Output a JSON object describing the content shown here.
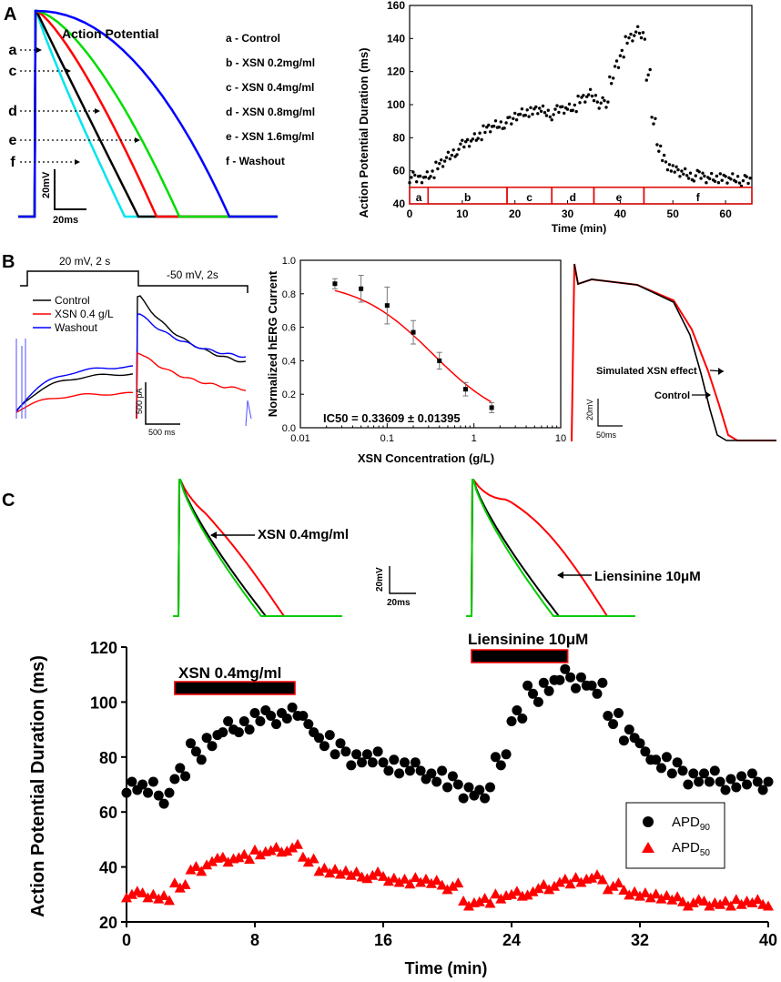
{
  "panel_labels": {
    "a": "A",
    "b": "B",
    "c": "C"
  },
  "panelA": {
    "traces": {
      "title": "Action Potential",
      "letters": [
        "a",
        "c",
        "d",
        "e",
        "f"
      ],
      "legend": [
        "a - Control",
        "b - XSN 0.2mg/ml",
        "c - XSN 0.4mg/ml",
        "d - XSN 0.8mg/ml",
        "e - XSN 1.6mg/ml",
        "f - Washout"
      ],
      "scale_v": "20mV",
      "scale_t": "20ms",
      "colors": [
        "#000000",
        "#ff0000",
        "#00dd00",
        "#0000ff",
        "#00e5ee"
      ]
    },
    "timecourse": {
      "ylabel": "Action Potential Duration (ms)",
      "xlabel": "Time (min)",
      "segments": [
        {
          "label": "a",
          "from": 0,
          "to": 3.5
        },
        {
          "label": "b",
          "from": 3.5,
          "to": 18.5
        },
        {
          "label": "c",
          "from": 18.5,
          "to": 27
        },
        {
          "label": "d",
          "from": 27,
          "to": 35
        },
        {
          "label": "e",
          "from": 35,
          "to": 44.5
        },
        {
          "label": "f",
          "from": 44.5,
          "to": 65
        }
      ]
    }
  },
  "panelB": {
    "protocol": {
      "step1": "20 mV, 2 s",
      "step2": "-50 mV, 2s"
    },
    "herg_legend": [
      "Control",
      "XSN 0.4 g/L",
      "Washout"
    ],
    "herg_colors": [
      "#000000",
      "#ff0000",
      "#0000ff"
    ],
    "scale_i": "500 pA",
    "scale_t": "500 ms",
    "dose": {
      "ylabel": "Normalized hERG Current",
      "xlabel": "XSN Concentration (g/L)",
      "ic50": "IC50 = 0.33609 ± 0.01395"
    },
    "sim": {
      "label_xsn": "Simulated XSN effect",
      "label_control": "Control",
      "scale_v": "20mV",
      "scale_t": "50ms"
    }
  },
  "panelC": {
    "trace_labels": [
      "XSN 0.4mg/ml",
      "Liensinine 10μM"
    ],
    "scale_v": "20mV",
    "scale_t": "20ms",
    "bars": [
      "XSN 0.4mg/ml",
      "Liensinine 10μM"
    ],
    "ylabel": "Action Potential Duration (ms)",
    "xlabel": "Time (min)",
    "legend": [
      "APD",
      "APD"
    ],
    "legend_sub": [
      "90",
      "50"
    ]
  },
  "chart_data": [
    {
      "type": "scatter",
      "title": "",
      "xlabel": "Time (min)",
      "ylabel": "Action Potential Duration (ms)",
      "xlim": [
        0,
        65
      ],
      "ylim": [
        40,
        160
      ],
      "xticks": [
        0,
        10,
        20,
        30,
        40,
        50,
        60
      ],
      "yticks": [
        40,
        60,
        80,
        100,
        120,
        140,
        160
      ],
      "series": [
        {
          "name": "APD",
          "x": [
            0,
            1,
            2,
            3,
            4,
            5,
            6,
            7,
            8,
            9,
            10,
            11,
            12,
            13,
            14,
            15,
            16,
            17,
            18,
            19,
            20,
            21,
            22,
            23,
            24,
            25,
            26,
            27,
            28,
            29,
            30,
            31,
            32,
            33,
            34,
            35,
            36,
            37,
            38,
            39,
            40,
            41,
            42,
            43,
            44,
            45,
            46,
            47,
            48,
            49,
            50,
            51,
            52,
            53,
            54,
            55,
            56,
            57,
            58,
            59,
            60,
            61,
            62,
            63,
            64
          ],
          "y": [
            56,
            55,
            56,
            57,
            59,
            62,
            65,
            68,
            71,
            73,
            76,
            78,
            80,
            82,
            84,
            86,
            87,
            88,
            89,
            90,
            94,
            95,
            96,
            95,
            97,
            96,
            95,
            94,
            97,
            98,
            98,
            99,
            102,
            104,
            106,
            104,
            101,
            100,
            116,
            124,
            132,
            138,
            141,
            144,
            142,
            118,
            90,
            75,
            67,
            63,
            60,
            59,
            58,
            57,
            57,
            57,
            56,
            56,
            56,
            55,
            55,
            55,
            55,
            54,
            54
          ]
        }
      ]
    },
    {
      "type": "scatter",
      "title": "",
      "xlabel": "XSN Concentration (g/L)",
      "ylabel": "Normalized hERG Current",
      "xscale": "log",
      "xlim": [
        0.01,
        10
      ],
      "ylim": [
        0.0,
        1.0
      ],
      "xticks": [
        "0.01",
        "0.1",
        "1",
        "10"
      ],
      "yticks": [
        "0.0",
        "0.2",
        "0.4",
        "0.6",
        "0.8",
        "1.0"
      ],
      "series": [
        {
          "name": "Normalized hERG Current",
          "x": [
            0.025,
            0.05,
            0.1,
            0.2,
            0.4,
            0.8,
            1.6
          ],
          "y": [
            0.86,
            0.83,
            0.73,
            0.57,
            0.4,
            0.23,
            0.12
          ],
          "err": [
            0.03,
            0.08,
            0.11,
            0.07,
            0.05,
            0.04,
            0.03
          ]
        }
      ],
      "fit": {
        "type": "hill",
        "ic50": 0.33609,
        "hill": 1.0,
        "top": 0.88
      }
    },
    {
      "type": "scatter",
      "title": "",
      "xlabel": "Time (min)",
      "ylabel": "Action Potential Duration (ms)",
      "xlim": [
        0,
        40
      ],
      "ylim": [
        20,
        120
      ],
      "xticks": [
        0,
        8,
        16,
        24,
        32,
        40
      ],
      "yticks": [
        20,
        40,
        60,
        80,
        100,
        120
      ],
      "bars": [
        {
          "label": "XSN 0.4mg/ml",
          "from": 3,
          "to": 10.5
        },
        {
          "label": "Liensinine 10μM",
          "from": 21.5,
          "to": 27.5
        }
      ],
      "series": [
        {
          "name": "APD90",
          "x": [
            0,
            1,
            2,
            3,
            4,
            5,
            6,
            7,
            8,
            9,
            10,
            11,
            12,
            13,
            14,
            15,
            16,
            17,
            18,
            19,
            20,
            21,
            22,
            23,
            24,
            25,
            26,
            27,
            28,
            29,
            30,
            31,
            32,
            33,
            34,
            35,
            36,
            37,
            38,
            39,
            40
          ],
          "y": [
            70,
            68,
            66,
            74,
            82,
            86,
            90,
            92,
            94,
            95,
            96,
            92,
            86,
            82,
            80,
            79,
            78,
            76,
            75,
            73,
            70,
            68,
            66,
            80,
            95,
            103,
            106,
            109,
            108,
            104,
            95,
            88,
            82,
            78,
            75,
            73,
            72,
            71,
            71,
            71,
            70
          ]
        },
        {
          "name": "APD50",
          "x": [
            0,
            1,
            2,
            3,
            4,
            5,
            6,
            7,
            8,
            9,
            10,
            11,
            12,
            13,
            14,
            15,
            16,
            17,
            18,
            19,
            20,
            21,
            22,
            23,
            24,
            25,
            26,
            27,
            28,
            29,
            30,
            31,
            32,
            33,
            34,
            35,
            36,
            37,
            38,
            39,
            40
          ],
          "y": [
            30,
            30,
            29,
            33,
            39,
            42,
            43,
            44,
            45,
            46,
            47,
            43,
            39,
            38,
            37,
            37,
            36,
            35,
            35,
            34,
            33,
            27,
            28,
            29,
            30,
            31,
            33,
            35,
            35,
            36,
            33,
            31,
            30,
            29,
            28,
            27,
            27,
            27,
            27,
            27,
            27
          ]
        }
      ]
    }
  ]
}
